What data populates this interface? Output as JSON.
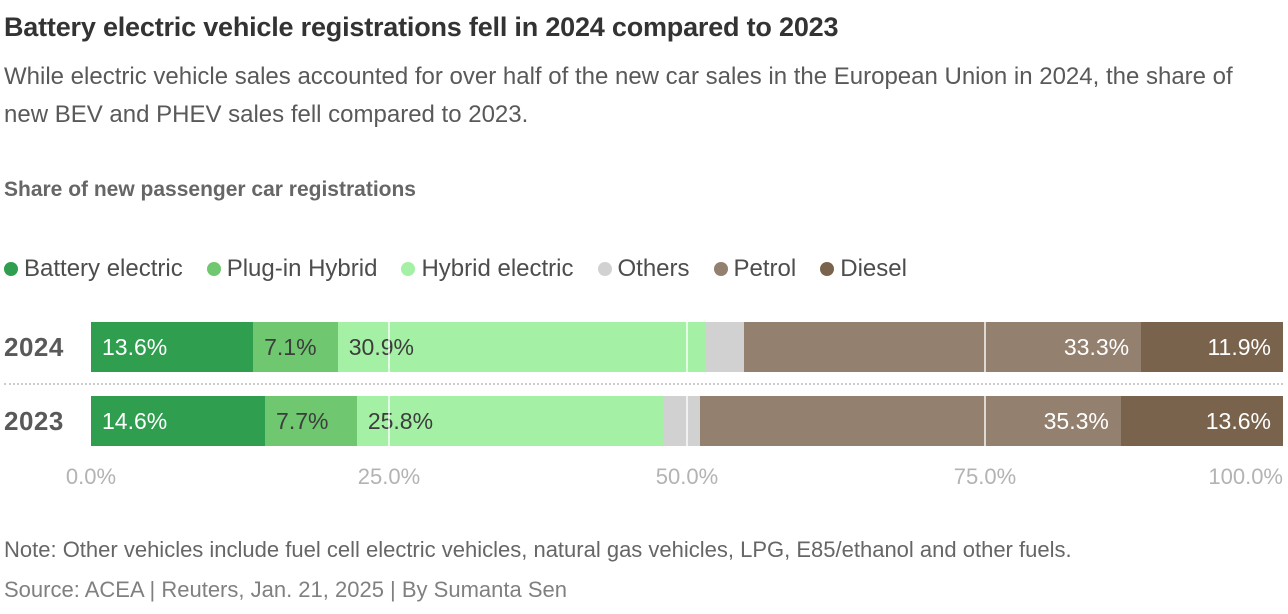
{
  "header": {
    "title": "Battery electric vehicle registrations fell in 2024 compared to 2023",
    "subtitle": "While electric vehicle sales accounted for over half of the new car sales in the European Union in 2024, the share of new BEV and PHEV sales fell compared to 2023.",
    "section_title": "Share of new passenger car registrations"
  },
  "chart_data": {
    "type": "bar",
    "variant": "horizontal-stacked",
    "title": "Share of new passenger car registrations",
    "categories": [
      "2024",
      "2023"
    ],
    "series": [
      {
        "name": "Battery electric",
        "color": "#2f9e4f",
        "values": [
          13.6,
          14.6
        ],
        "labels": [
          "13.6%",
          "14.6%"
        ],
        "label_color": "#ffffff",
        "label_align": "left"
      },
      {
        "name": "Plug-in Hybrid",
        "color": "#6fc76f",
        "values": [
          7.1,
          7.7
        ],
        "labels": [
          "7.1%",
          "7.7%"
        ],
        "label_color": "#3d3d3d",
        "label_align": "left"
      },
      {
        "name": "Hybrid electric",
        "color": "#a4f0a4",
        "values": [
          30.9,
          25.8
        ],
        "labels": [
          "30.9%",
          "25.8%"
        ],
        "label_color": "#3d3d3d",
        "label_align": "left"
      },
      {
        "name": "Others",
        "color": "#d1d1d1",
        "values": [
          3.2,
          3.0
        ],
        "labels": [
          "",
          ""
        ],
        "label_color": "#3d3d3d",
        "label_align": "left"
      },
      {
        "name": "Petrol",
        "color": "#93806f",
        "values": [
          33.3,
          35.3
        ],
        "labels": [
          "33.3%",
          "35.3%"
        ],
        "label_color": "#ffffff",
        "label_align": "right"
      },
      {
        "name": "Diesel",
        "color": "#7a634c",
        "values": [
          11.9,
          13.6
        ],
        "labels": [
          "11.9%",
          "13.6%"
        ],
        "label_color": "#ffffff",
        "label_align": "right"
      }
    ],
    "xlim": [
      0,
      100
    ],
    "xticks": [
      {
        "value": 0,
        "label": "0.0%"
      },
      {
        "value": 25,
        "label": "25.0%"
      },
      {
        "value": 50,
        "label": "50.0%"
      },
      {
        "value": 75,
        "label": "75.0%"
      },
      {
        "value": 100,
        "label": "100.0%"
      }
    ],
    "gridlines": [
      25,
      50,
      75
    ],
    "legend_position": "top",
    "grid": "vertical-white-overlay"
  },
  "footer": {
    "note": "Note: Other vehicles include fuel cell electric vehicles, natural gas vehicles, LPG, E85/ethanol and other fuels.",
    "source": "Source: ACEA | Reuters, Jan. 21, 2025 | By Sumanta Sen"
  }
}
